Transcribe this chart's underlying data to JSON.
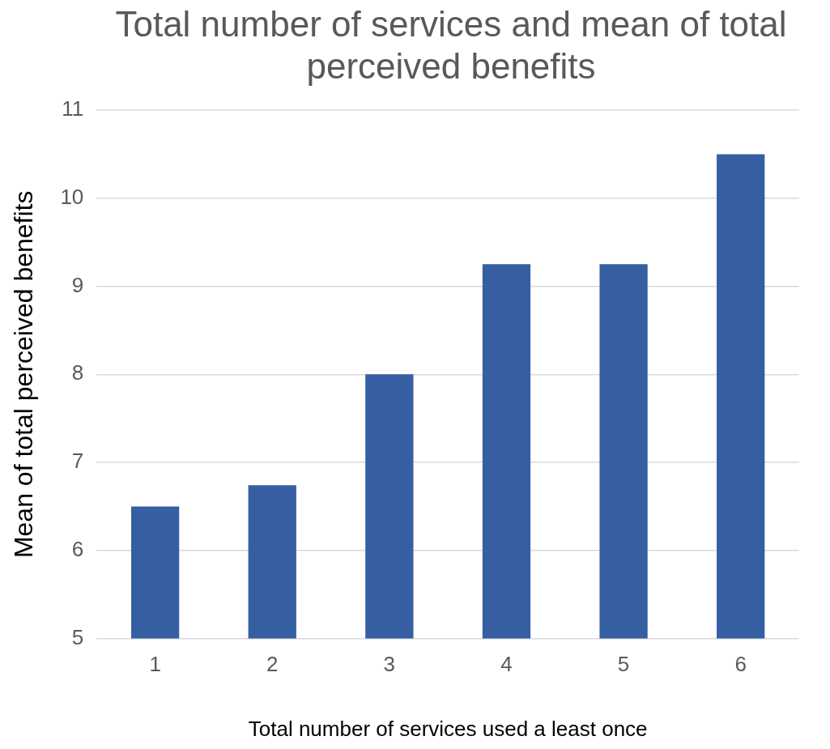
{
  "chart_data": {
    "type": "bar",
    "title": "Total number of services and mean of total perceived benefits",
    "xlabel": "Total number of services used a least once",
    "ylabel": "Mean of total perceived benefits",
    "categories": [
      "1",
      "2",
      "3",
      "4",
      "5",
      "6"
    ],
    "values": [
      6.5,
      6.74,
      8,
      9.25,
      9.25,
      10.5
    ],
    "color": "#365fa3",
    "ylim": [
      5,
      11
    ],
    "yticks": [
      5,
      6,
      7,
      8,
      9,
      10,
      11
    ],
    "grid": "y",
    "legend": false
  }
}
